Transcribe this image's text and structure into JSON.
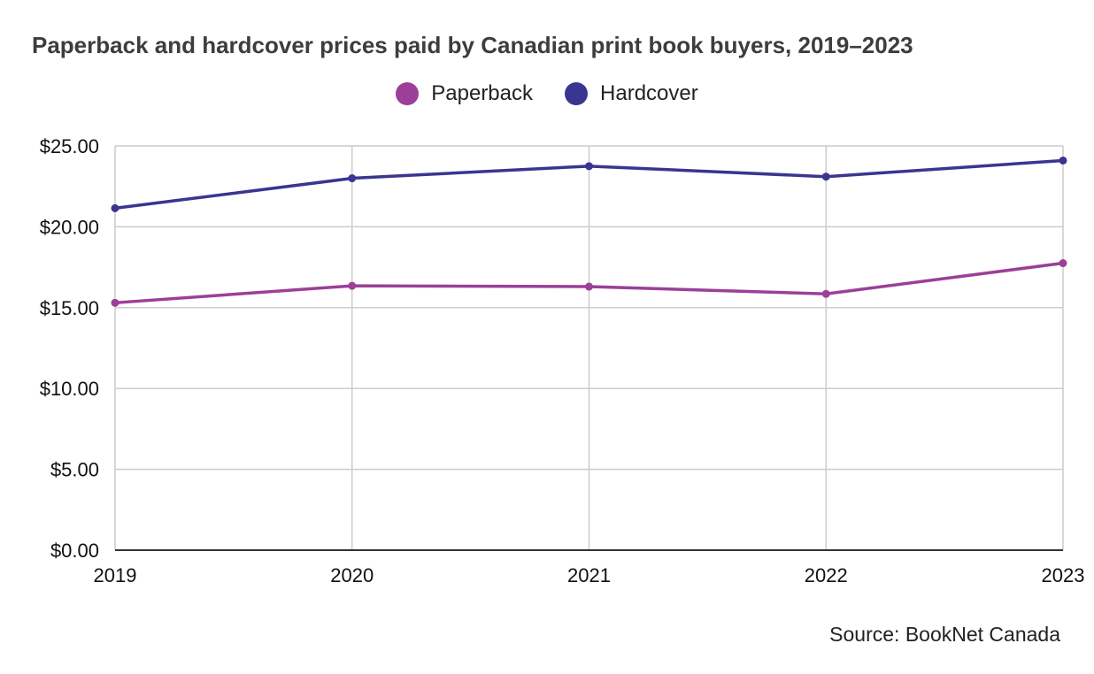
{
  "chart_data": {
    "type": "line",
    "title": "Paperback and hardcover prices paid by Canadian print book buyers, 2019–2023",
    "x": [
      "2019",
      "2020",
      "2021",
      "2022",
      "2023"
    ],
    "series": [
      {
        "name": "Paperback",
        "color": "#9c3f98",
        "values": [
          15.3,
          16.35,
          16.3,
          15.85,
          17.75
        ]
      },
      {
        "name": "Hardcover",
        "color": "#3a3590",
        "values": [
          21.15,
          23.0,
          23.75,
          23.1,
          24.1
        ]
      }
    ],
    "ylim": [
      0,
      25
    ],
    "yticks": [
      0,
      5,
      10,
      15,
      20,
      25
    ],
    "ytick_labels": [
      "$0.00",
      "$5.00",
      "$10.00",
      "$15.00",
      "$20.00",
      "$25.00"
    ],
    "grid": true,
    "legend_position": "top-center",
    "source": "Source: BookNet Canada"
  }
}
